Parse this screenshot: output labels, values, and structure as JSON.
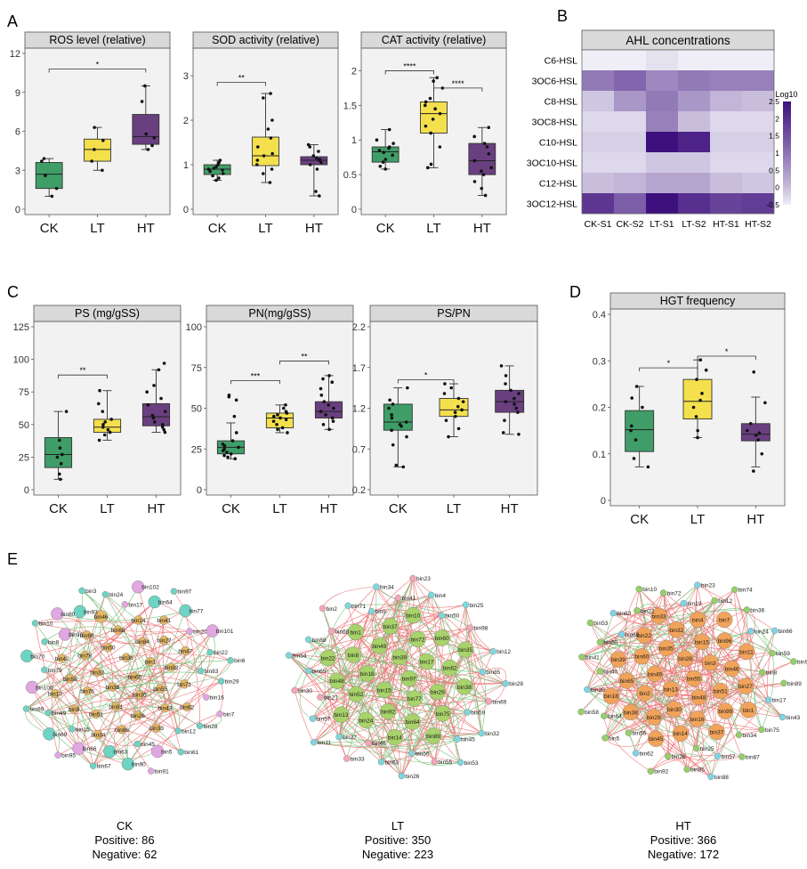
{
  "figure": {
    "panel_letters": [
      "A",
      "B",
      "C",
      "D",
      "E"
    ],
    "colors": {
      "CK": "#3f9e68",
      "LT": "#f4e04d",
      "HT": "#6a3f80",
      "panel_bg": "#f2f2f2",
      "title_bg": "#d9d9d9",
      "positive_edge": "#e8474b",
      "negative_edge": "#4caf50"
    }
  },
  "chart_data": [
    {
      "id": "ros",
      "panel": "A",
      "type": "box",
      "title": "ROS level (relative)",
      "categories": [
        "CK",
        "LT",
        "HT"
      ],
      "ylim": [
        0,
        12
      ],
      "yticks": [
        0,
        3,
        6,
        9,
        12
      ],
      "grid": false,
      "boxes": [
        {
          "name": "CK",
          "min": 1.0,
          "q1": 1.6,
          "median": 2.7,
          "q3": 3.6,
          "max": 3.9
        },
        {
          "name": "LT",
          "min": 3.0,
          "q1": 3.7,
          "median": 4.6,
          "q3": 5.4,
          "max": 6.3
        },
        {
          "name": "HT",
          "min": 4.6,
          "q1": 5.0,
          "median": 5.6,
          "q3": 7.3,
          "max": 9.5
        }
      ],
      "points": [
        [
          1.0,
          1.6,
          2.6,
          3.7,
          3.9
        ],
        [
          3.0,
          3.7,
          4.6,
          5.3,
          6.3
        ],
        [
          4.6,
          4.9,
          5.5,
          5.8,
          8.3,
          9.5
        ]
      ],
      "significance": [
        {
          "from": "CK",
          "to": "HT",
          "label": "*",
          "y": 10.8
        }
      ]
    },
    {
      "id": "sod",
      "panel": "A",
      "type": "box",
      "title": "SOD activity (relative)",
      "categories": [
        "CK",
        "LT",
        "HT"
      ],
      "ylim": [
        0,
        3.5
      ],
      "yticks": [
        0,
        1,
        2,
        3
      ],
      "grid": false,
      "boxes": [
        {
          "name": "CK",
          "min": 0.65,
          "q1": 0.78,
          "median": 0.9,
          "q3": 1.0,
          "max": 1.1
        },
        {
          "name": "LT",
          "min": 0.6,
          "q1": 0.98,
          "median": 1.2,
          "q3": 1.62,
          "max": 2.6
        },
        {
          "name": "HT",
          "min": 0.3,
          "q1": 1.0,
          "median": 1.1,
          "q3": 1.18,
          "max": 1.45
        }
      ],
      "points": [
        [
          0.65,
          0.7,
          0.75,
          0.8,
          0.85,
          0.88,
          0.9,
          0.92,
          0.95,
          1.0,
          1.05,
          1.1
        ],
        [
          0.6,
          0.8,
          0.9,
          1.0,
          1.1,
          1.2,
          1.25,
          1.4,
          1.6,
          1.8,
          2.0,
          2.5,
          2.6
        ],
        [
          0.3,
          0.4,
          0.9,
          1.0,
          1.05,
          1.1,
          1.12,
          1.15,
          1.2,
          1.3,
          1.4,
          1.45
        ]
      ],
      "significance": [
        {
          "from": "CK",
          "to": "LT",
          "label": "**",
          "y": 2.85
        }
      ]
    },
    {
      "id": "cat",
      "panel": "A",
      "type": "box",
      "title": "CAT activity (relative)",
      "categories": [
        "CK",
        "LT",
        "HT"
      ],
      "ylim": [
        0,
        2.25
      ],
      "yticks": [
        0,
        0.5,
        1,
        1.5,
        2
      ],
      "grid": false,
      "boxes": [
        {
          "name": "CK",
          "min": 0.58,
          "q1": 0.68,
          "median": 0.83,
          "q3": 0.9,
          "max": 1.15
        },
        {
          "name": "LT",
          "min": 0.6,
          "q1": 1.1,
          "median": 1.38,
          "q3": 1.55,
          "max": 1.9
        },
        {
          "name": "HT",
          "min": 0.2,
          "q1": 0.5,
          "median": 0.7,
          "q3": 0.95,
          "max": 1.18
        }
      ],
      "points": [
        [
          0.58,
          0.62,
          0.68,
          0.72,
          0.78,
          0.82,
          0.85,
          0.88,
          0.9,
          0.95,
          1.0,
          1.15
        ],
        [
          0.6,
          0.65,
          0.9,
          1.1,
          1.2,
          1.3,
          1.38,
          1.45,
          1.5,
          1.55,
          1.6,
          1.75,
          1.85,
          1.9
        ],
        [
          0.2,
          0.3,
          0.4,
          0.5,
          0.55,
          0.6,
          0.7,
          0.8,
          0.9,
          0.95,
          1.05,
          1.18
        ]
      ],
      "significance": [
        {
          "from": "CK",
          "to": "LT",
          "label": "****",
          "y": 2.0
        },
        {
          "from": "LT",
          "to": "HT",
          "label": "****",
          "y": 1.75
        }
      ]
    },
    {
      "id": "ahl",
      "panel": "B",
      "type": "heatmap",
      "title": "AHL concentrations",
      "rows": [
        "C6-HSL",
        "3OC6-HSL",
        "C8-HSL",
        "3OC8-HSL",
        "C10-HSL",
        "3OC10-HSL",
        "C12-HSL",
        "3OC12-HSL"
      ],
      "columns": [
        "CK-S1",
        "CK-S2",
        "LT-S1",
        "LT-S2",
        "HT-S1",
        "HT-S2"
      ],
      "values": [
        [
          -0.5,
          -0.5,
          -0.4,
          -0.5,
          -0.5,
          -0.5
        ],
        [
          0.9,
          1.2,
          0.7,
          0.9,
          0.8,
          0.8
        ],
        [
          -0.1,
          0.5,
          0.9,
          0.5,
          0.1,
          0.0
        ],
        [
          -0.3,
          -0.3,
          0.8,
          0.0,
          -0.3,
          -0.3
        ],
        [
          -0.2,
          -0.2,
          2.6,
          2.2,
          -0.2,
          -0.2
        ],
        [
          -0.3,
          -0.3,
          -0.1,
          -0.1,
          -0.3,
          -0.3
        ],
        [
          0.0,
          0.1,
          0.3,
          0.3,
          0.0,
          -0.1
        ],
        [
          1.9,
          1.3,
          2.5,
          2.0,
          1.7,
          1.8
        ]
      ],
      "legend": {
        "title": "Log10",
        "ticks": [
          "2.5",
          "2",
          "1.5",
          "1",
          "0.5",
          "0",
          "-0.5"
        ],
        "min": -0.5,
        "max": 2.5
      }
    },
    {
      "id": "ps",
      "panel": "C",
      "type": "box",
      "title": "PS (mg/gSS)",
      "categories": [
        "CK",
        "LT",
        "HT"
      ],
      "ylim": [
        0,
        125
      ],
      "yticks": [
        0,
        25,
        50,
        75,
        100,
        125
      ],
      "grid": false,
      "boxes": [
        {
          "name": "CK",
          "min": 8,
          "q1": 17,
          "median": 27,
          "q3": 40,
          "max": 60
        },
        {
          "name": "LT",
          "min": 38,
          "q1": 44,
          "median": 48,
          "q3": 54,
          "max": 76
        },
        {
          "name": "HT",
          "min": 44,
          "q1": 49,
          "median": 56,
          "q3": 66,
          "max": 92
        }
      ],
      "points": [
        [
          8,
          12,
          20,
          25,
          27,
          32,
          38,
          60
        ],
        [
          38,
          42,
          44,
          46,
          48,
          50,
          52,
          54,
          60,
          66,
          76
        ],
        [
          44,
          46,
          48,
          50,
          52,
          55,
          57,
          60,
          65,
          70,
          75,
          80,
          92,
          97
        ]
      ],
      "significance": [
        {
          "from": "CK",
          "to": "LT",
          "label": "**",
          "y": 88
        }
      ]
    },
    {
      "id": "pn",
      "panel": "C",
      "type": "box",
      "title": "PN(mg/gSS)",
      "categories": [
        "CK",
        "LT",
        "HT"
      ],
      "ylim": [
        0,
        100
      ],
      "yticks": [
        0,
        25,
        50,
        75,
        100
      ],
      "grid": false,
      "boxes": [
        {
          "name": "CK",
          "min": 19,
          "q1": 22,
          "median": 26,
          "q3": 30,
          "max": 41
        },
        {
          "name": "LT",
          "min": 35,
          "q1": 38,
          "median": 44,
          "q3": 47,
          "max": 52
        },
        {
          "name": "HT",
          "min": 37,
          "q1": 44,
          "median": 48,
          "q3": 54,
          "max": 70
        }
      ],
      "points": [
        [
          19,
          20,
          21,
          22,
          23,
          24,
          25,
          26,
          27,
          28,
          30,
          35,
          45,
          55,
          57,
          58
        ],
        [
          35,
          37,
          38,
          40,
          42,
          43,
          44,
          45,
          46,
          47,
          48,
          50,
          52
        ],
        [
          37,
          40,
          42,
          44,
          46,
          48,
          50,
          52,
          54,
          58,
          62,
          66,
          68,
          70
        ]
      ],
      "significance": [
        {
          "from": "CK",
          "to": "LT",
          "label": "***",
          "y": 67
        },
        {
          "from": "LT",
          "to": "HT",
          "label": "**",
          "y": 79
        }
      ]
    },
    {
      "id": "pspn",
      "panel": "C",
      "type": "box",
      "title": "PS/PN",
      "categories": [
        "CK",
        "LT",
        "HT"
      ],
      "ylim": [
        0.2,
        2.2
      ],
      "yticks": [
        0.2,
        0.7,
        1.2,
        1.7,
        2.2
      ],
      "grid": false,
      "boxes": [
        {
          "name": "CK",
          "min": 0.48,
          "q1": 0.93,
          "median": 1.03,
          "q3": 1.25,
          "max": 1.45
        },
        {
          "name": "LT",
          "min": 0.85,
          "q1": 1.1,
          "median": 1.18,
          "q3": 1.32,
          "max": 1.5
        },
        {
          "name": "HT",
          "min": 0.88,
          "q1": 1.15,
          "median": 1.28,
          "q3": 1.42,
          "max": 1.72
        }
      ],
      "points": [
        [
          0.48,
          0.5,
          0.75,
          0.85,
          0.93,
          0.98,
          1.0,
          1.03,
          1.08,
          1.12,
          1.2,
          1.25,
          1.3,
          1.45
        ],
        [
          0.85,
          0.95,
          1.05,
          1.1,
          1.15,
          1.18,
          1.22,
          1.28,
          1.32,
          1.38,
          1.45,
          1.5
        ],
        [
          0.88,
          0.9,
          1.05,
          1.15,
          1.2,
          1.25,
          1.28,
          1.32,
          1.38,
          1.42,
          1.5,
          1.6,
          1.72
        ]
      ],
      "significance": [
        {
          "from": "CK",
          "to": "LT",
          "label": "*",
          "y": 1.55
        }
      ]
    },
    {
      "id": "hgt",
      "panel": "D",
      "type": "box",
      "title": "HGT frequency",
      "categories": [
        "CK",
        "LT",
        "HT"
      ],
      "ylim": [
        0,
        0.4
      ],
      "yticks": [
        0,
        0.1,
        0.2,
        0.3,
        0.4
      ],
      "grid": false,
      "boxes": [
        {
          "name": "CK",
          "min": 0.072,
          "q1": 0.105,
          "median": 0.152,
          "q3": 0.193,
          "max": 0.245
        },
        {
          "name": "LT",
          "min": 0.135,
          "q1": 0.175,
          "median": 0.213,
          "q3": 0.26,
          "max": 0.302
        },
        {
          "name": "HT",
          "min": 0.072,
          "q1": 0.128,
          "median": 0.142,
          "q3": 0.165,
          "max": 0.222
        }
      ],
      "points": [
        [
          0.072,
          0.09,
          0.13,
          0.15,
          0.16,
          0.2,
          0.22,
          0.245
        ],
        [
          0.135,
          0.15,
          0.18,
          0.2,
          0.215,
          0.23,
          0.26,
          0.28,
          0.302
        ],
        [
          0.063,
          0.1,
          0.13,
          0.14,
          0.145,
          0.15,
          0.165,
          0.21,
          0.276
        ]
      ],
      "significance": [
        {
          "from": "CK",
          "to": "LT",
          "label": "*",
          "y": 0.285
        },
        {
          "from": "LT",
          "to": "HT",
          "label": "*",
          "y": 0.31
        }
      ]
    }
  ],
  "networks": [
    {
      "label": "CK",
      "positive_label": "Positive:  86",
      "negative_label": "Negative: 62",
      "positive": 86,
      "negative": 62,
      "nodes": [
        "bin65",
        "bin38",
        "bin36",
        "bin35",
        "bin32",
        "bin1",
        "bin81",
        "bin50",
        "bin55",
        "bin76",
        "bin84",
        "bin26",
        "bin78",
        "bin82",
        "bin51",
        "bin68",
        "bin43",
        "bin58",
        "bin27",
        "bin86",
        "bin88",
        "bin71",
        "bin9",
        "bin14",
        "bin33",
        "bin42",
        "bin47",
        "bin34",
        "bin46",
        "bin62",
        "bin13",
        "bin41",
        "bin45",
        "bin98",
        "bin83",
        "bin15",
        "bin17",
        "bin12",
        "bin79",
        "bin20",
        "bin63",
        "bin93",
        "bin16",
        "bin49",
        "bin64",
        "bin5",
        "bin8",
        "bin22",
        "bin66",
        "bin24",
        "bin28",
        "bin100",
        "bin77",
        "bin90",
        "bin80",
        "bin29",
        "bin69",
        "bin102",
        "bin61",
        "bin70",
        "bin101",
        "bin67",
        "bin3",
        "bin7",
        "bin89",
        "bin97",
        "bin91",
        "bin10",
        "bin6",
        "bin95"
      ]
    },
    {
      "label": "LT",
      "positive_label": "Positive: 350",
      "negative_label": "Negative: 223",
      "positive": 350,
      "negative": 223,
      "nodes": [
        "bin97",
        "bin15",
        "bin39",
        "bin77",
        "bin18",
        "bin17",
        "bin92",
        "bin49",
        "bin29",
        "bin52",
        "bin72",
        "bin64",
        "bin8",
        "bin62",
        "bin24",
        "bin37",
        "bin75",
        "bin48",
        "bin60",
        "bin14",
        "bin1",
        "bin38",
        "bin13",
        "bin10",
        "bin89",
        "bin22",
        "bin35",
        "bin46",
        "bin5",
        "bin59",
        "bin21",
        "bin50",
        "bin56",
        "bin68",
        "bin85",
        "bin27",
        "bin41",
        "bin45",
        "bin65",
        "bin98",
        "bin63",
        "bin71",
        "bin69",
        "bin57",
        "bin4",
        "bin55",
        "bin88",
        "bin12",
        "bin33",
        "bin34",
        "bin32",
        "bin30",
        "bin25",
        "bin26",
        "bin2",
        "bin28",
        "bin11",
        "bin23",
        "bin53",
        "bin54"
      ]
    },
    {
      "label": "HT",
      "positive_label": "Positive: 366",
      "negative_label": "Negative: 172",
      "positive": 366,
      "negative": 172,
      "nodes": [
        "bin55",
        "bin13",
        "bin28",
        "bin48",
        "bin49",
        "bin3",
        "bin30",
        "bin35",
        "bin51",
        "bin2",
        "bin15",
        "bin16",
        "bin60",
        "bin46",
        "bin29",
        "bin32",
        "bin99",
        "bin65",
        "bin96",
        "bin14",
        "bin22",
        "bin27",
        "bin38",
        "bin4",
        "bin37",
        "bin39",
        "bin11",
        "bin45",
        "bin33",
        "bin1",
        "bin18",
        "bin7",
        "bin25",
        "bin69",
        "bin8",
        "bin56",
        "bin19",
        "bin34",
        "bin40",
        "bin24",
        "bin26",
        "bin21",
        "bin17",
        "bin64",
        "bin12",
        "bin57",
        "bin50",
        "bin59",
        "bin62",
        "bin72",
        "bin75",
        "bin20",
        "bin36",
        "bin85",
        "bin63",
        "bin89",
        "bin5",
        "bin23",
        "bin87",
        "bin41",
        "bin66",
        "bin92",
        "bin10",
        "bin43",
        "bin58",
        "bin74",
        "bin88",
        "bin53",
        "bin9"
      ]
    }
  ]
}
